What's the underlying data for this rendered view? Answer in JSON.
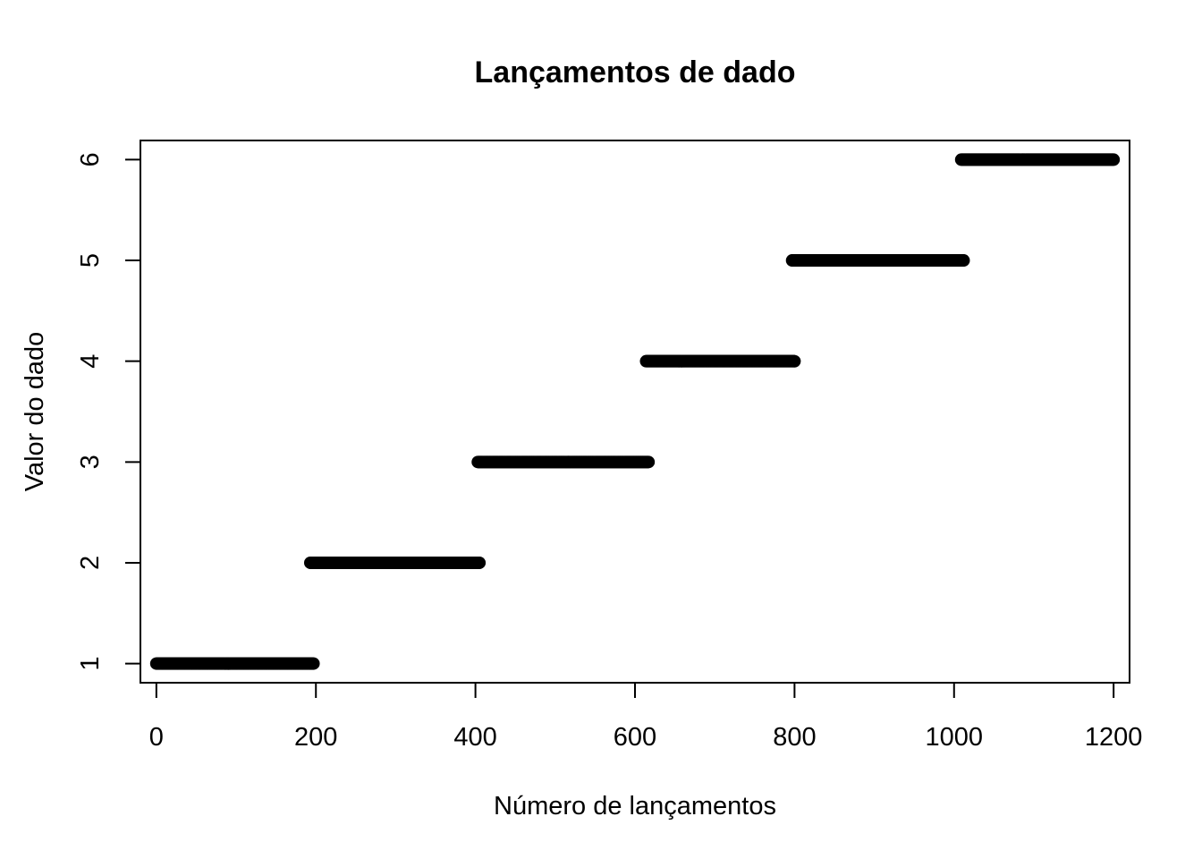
{
  "chart_data": {
    "type": "scatter",
    "title": "Lançamentos de dado",
    "xlabel": "Número de lançamentos",
    "ylabel": "Valor do dado",
    "xlim": [
      -20,
      1220
    ],
    "ylim": [
      0.81,
      6.19
    ],
    "xticks": [
      0,
      200,
      400,
      600,
      800,
      1000,
      1200
    ],
    "yticks": [
      1,
      2,
      3,
      4,
      5,
      6
    ],
    "grid": false,
    "legend": "none",
    "point_color": "#000000",
    "series": [
      {
        "value": 1,
        "x_start": 0,
        "x_end": 197
      },
      {
        "value": 2,
        "x_start": 193,
        "x_end": 405
      },
      {
        "value": 3,
        "x_start": 403,
        "x_end": 617
      },
      {
        "value": 4,
        "x_start": 614,
        "x_end": 800
      },
      {
        "value": 5,
        "x_start": 797,
        "x_end": 1012
      },
      {
        "value": 6,
        "x_start": 1009,
        "x_end": 1200
      }
    ]
  }
}
